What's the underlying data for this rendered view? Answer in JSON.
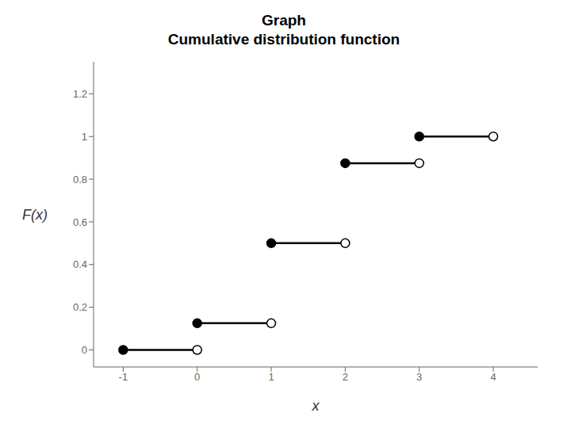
{
  "chart_data": {
    "type": "step",
    "title": "Graph",
    "subtitle": "Cumulative distribution function",
    "x_label": "x",
    "y_label": "F(x)",
    "xlim": [
      -1.4,
      4.6
    ],
    "ylim": [
      -0.08,
      1.35
    ],
    "xticks": [
      -1,
      0,
      1,
      2,
      3,
      4
    ],
    "yticks": [
      0,
      0.2,
      0.4,
      0.6,
      0.8,
      1,
      1.2
    ],
    "segments": [
      {
        "x_start": -1,
        "x_end": 0,
        "y": 0
      },
      {
        "x_start": 0,
        "x_end": 1,
        "y": 0.125
      },
      {
        "x_start": 1,
        "x_end": 2,
        "y": 0.5
      },
      {
        "x_start": 2,
        "x_end": 3,
        "y": 0.875
      },
      {
        "x_start": 3,
        "x_end": 4,
        "y": 1
      }
    ],
    "color": "black",
    "grid": false
  }
}
